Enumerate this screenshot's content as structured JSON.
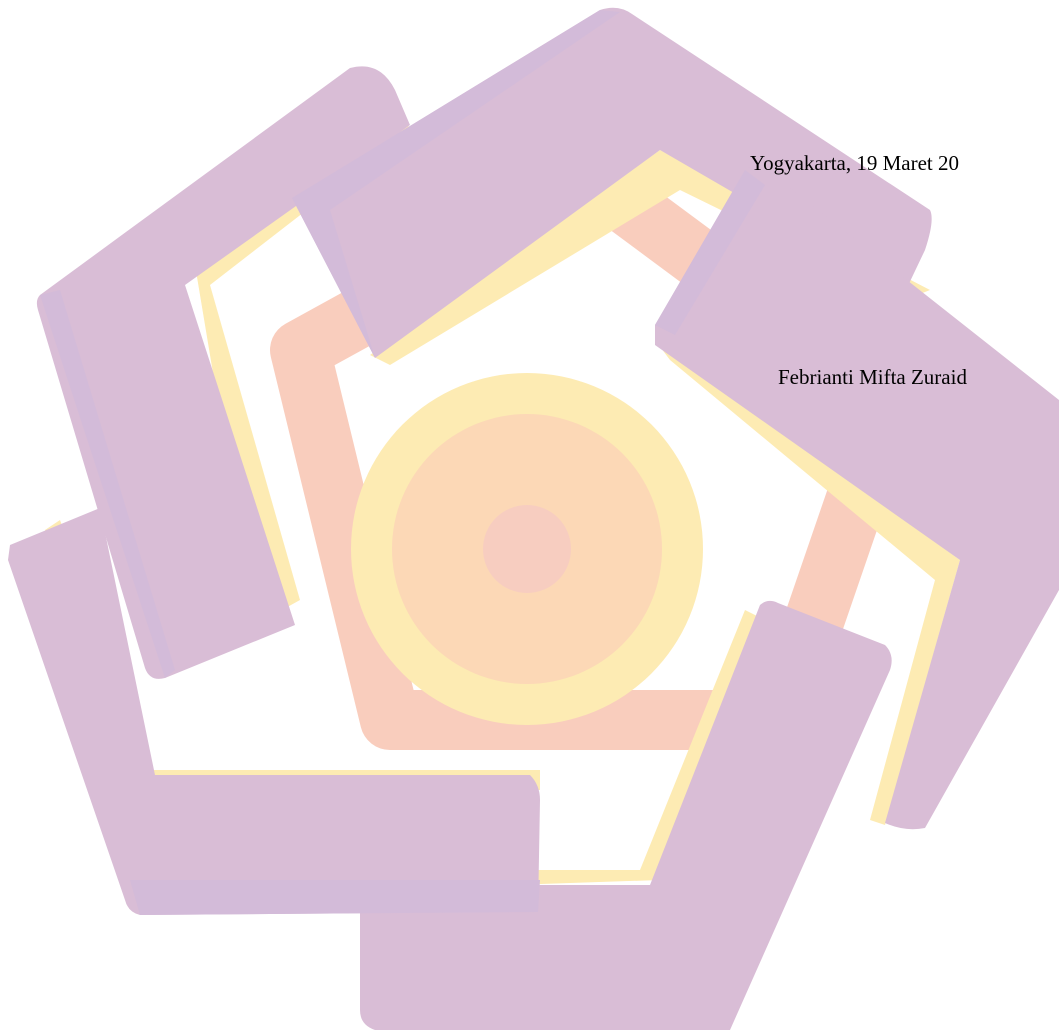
{
  "document": {
    "place_date": "Yogyakarta, 19 Maret 20",
    "signatory_name": "Febrianti Mifta Zuraid"
  },
  "watermark": {
    "icon": "university-logo-watermark",
    "colors": {
      "purple": "#d9bdd6",
      "purple_shade": "#d3bbd9",
      "yellow": "#fdebb3",
      "peach": "#fcd8b6",
      "salmon": "#f9cdbd",
      "center": "#f7cdc0"
    }
  }
}
